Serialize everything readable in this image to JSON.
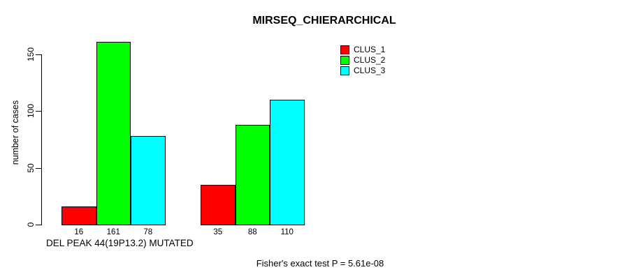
{
  "chart_data": {
    "type": "bar",
    "title": "MIRSEQ_CHIERARCHICAL",
    "ylabel": "number of cases",
    "xlabel": "DEL PEAK 44(19P13.2) MUTATED",
    "annotation": "Fisher's exact test P = 5.61e-08",
    "yticks": [
      0,
      50,
      100,
      150
    ],
    "ylim": [
      0,
      164
    ],
    "grid": false,
    "legend_position": "top-right",
    "bar_value_labels_shown": true,
    "group_count": 2,
    "series": [
      {
        "name": "CLUS_1",
        "color": "#ff0000",
        "values": [
          16,
          35
        ]
      },
      {
        "name": "CLUS_2",
        "color": "#00ff00",
        "values": [
          161,
          88
        ]
      },
      {
        "name": "CLUS_3",
        "color": "#00ffff",
        "values": [
          78,
          110
        ]
      }
    ]
  },
  "colors": {
    "background": "#ffffff",
    "axis": "#000000",
    "bar_border": "#000000",
    "clus_1": "#ff0000",
    "clus_2": "#00ff00",
    "clus_3": "#00ffff"
  }
}
